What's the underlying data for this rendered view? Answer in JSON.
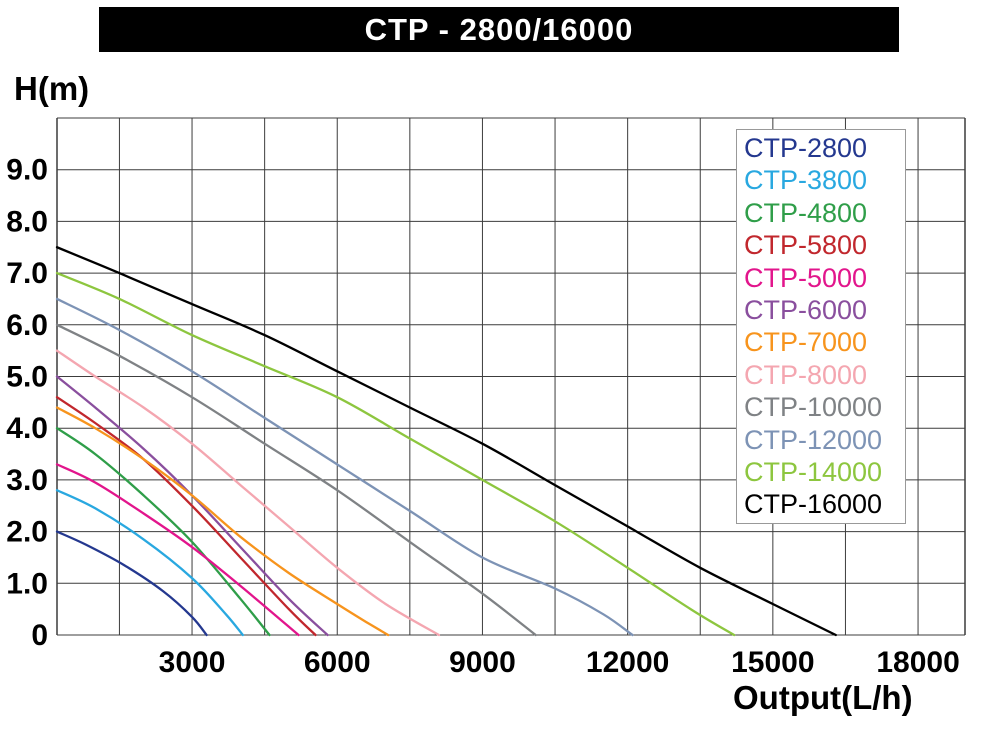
{
  "title_bar": {
    "title": "CTP - 2800/16000"
  },
  "axes": {
    "y_label": "H(m)",
    "x_label": "Output(L/h)"
  },
  "chart_data": {
    "type": "line",
    "title": "CTP - 2800/16000",
    "xlabel": "Output(L/h)",
    "ylabel": "H(m)",
    "xlim": [
      210,
      18970
    ],
    "ylim": [
      0,
      10
    ],
    "grid": {
      "x_step": 1500,
      "y_step": 1,
      "first_x_line": 1500,
      "last_x_line": 18000
    },
    "legend_position": "top-right",
    "x_ticks": [
      {
        "value": 3000,
        "label": "3000"
      },
      {
        "value": 6000,
        "label": "6000"
      },
      {
        "value": 9000,
        "label": "9000"
      },
      {
        "value": 12000,
        "label": "12000"
      },
      {
        "value": 15000,
        "label": "15000"
      },
      {
        "value": 18000,
        "label": "18000"
      }
    ],
    "y_ticks": [
      {
        "value": 0,
        "label": "0"
      },
      {
        "value": 1,
        "label": "1.0"
      },
      {
        "value": 2,
        "label": "2.0"
      },
      {
        "value": 3,
        "label": "3.0"
      },
      {
        "value": 4,
        "label": "4.0"
      },
      {
        "value": 5,
        "label": "5.0"
      },
      {
        "value": 6,
        "label": "6.0"
      },
      {
        "value": 7,
        "label": "7.0"
      },
      {
        "value": 8,
        "label": "8.0"
      },
      {
        "value": 9,
        "label": "9.0"
      }
    ],
    "series": [
      {
        "name": "CTP-2800",
        "color": "#24388f",
        "points": [
          [
            210,
            2.0
          ],
          [
            800,
            1.75
          ],
          [
            1600,
            1.35
          ],
          [
            2400,
            0.85
          ],
          [
            3000,
            0.35
          ],
          [
            3300,
            0
          ]
        ]
      },
      {
        "name": "CTP-3800",
        "color": "#29a8e0",
        "points": [
          [
            210,
            2.8
          ],
          [
            1000,
            2.45
          ],
          [
            2000,
            1.85
          ],
          [
            3000,
            1.1
          ],
          [
            3700,
            0.4
          ],
          [
            4050,
            0
          ]
        ]
      },
      {
        "name": "CTP-4800",
        "color": "#2f9e49",
        "points": [
          [
            210,
            4.0
          ],
          [
            1000,
            3.5
          ],
          [
            2000,
            2.7
          ],
          [
            3000,
            1.8
          ],
          [
            4000,
            0.7
          ],
          [
            4600,
            0
          ]
        ]
      },
      {
        "name": "CTP-5800",
        "color": "#c1272d",
        "points": [
          [
            210,
            4.6
          ],
          [
            1000,
            4.1
          ],
          [
            2000,
            3.4
          ],
          [
            3000,
            2.5
          ],
          [
            4000,
            1.5
          ],
          [
            5000,
            0.5
          ],
          [
            5550,
            0
          ]
        ]
      },
      {
        "name": "CTP-5000",
        "color": "#e2158c",
        "points": [
          [
            210,
            3.3
          ],
          [
            1000,
            2.95
          ],
          [
            2000,
            2.35
          ],
          [
            3000,
            1.7
          ],
          [
            4000,
            0.95
          ],
          [
            5200,
            0
          ]
        ]
      },
      {
        "name": "CTP-6000",
        "color": "#8a4f9e",
        "points": [
          [
            210,
            5.0
          ],
          [
            1000,
            4.4
          ],
          [
            2000,
            3.6
          ],
          [
            3000,
            2.7
          ],
          [
            4000,
            1.7
          ],
          [
            5000,
            0.7
          ],
          [
            5800,
            0
          ]
        ]
      },
      {
        "name": "CTP-7000",
        "color": "#f7941d",
        "points": [
          [
            210,
            4.4
          ],
          [
            1000,
            4.0
          ],
          [
            2000,
            3.4
          ],
          [
            3000,
            2.7
          ],
          [
            4000,
            1.9
          ],
          [
            5000,
            1.2
          ],
          [
            6000,
            0.6
          ],
          [
            6600,
            0.25
          ],
          [
            7050,
            0
          ]
        ]
      },
      {
        "name": "CTP-8000",
        "color": "#f4a6b0",
        "points": [
          [
            210,
            5.5
          ],
          [
            1000,
            5.0
          ],
          [
            2000,
            4.4
          ],
          [
            3000,
            3.7
          ],
          [
            4000,
            2.9
          ],
          [
            5000,
            2.1
          ],
          [
            6000,
            1.3
          ],
          [
            7000,
            0.6
          ],
          [
            8100,
            0
          ]
        ]
      },
      {
        "name": "CTP-10000",
        "color": "#7f8285",
        "points": [
          [
            210,
            6.0
          ],
          [
            1500,
            5.4
          ],
          [
            3000,
            4.6
          ],
          [
            4500,
            3.7
          ],
          [
            6000,
            2.8
          ],
          [
            7500,
            1.8
          ],
          [
            9000,
            0.8
          ],
          [
            10100,
            0
          ]
        ]
      },
      {
        "name": "CTP-12000",
        "color": "#7d93b5",
        "points": [
          [
            210,
            6.5
          ],
          [
            1500,
            5.9
          ],
          [
            3000,
            5.1
          ],
          [
            4500,
            4.2
          ],
          [
            6000,
            3.3
          ],
          [
            7500,
            2.4
          ],
          [
            9000,
            1.5
          ],
          [
            10500,
            0.9
          ],
          [
            11500,
            0.4
          ],
          [
            12100,
            0
          ]
        ]
      },
      {
        "name": "CTP-14000",
        "color": "#8dc63f",
        "points": [
          [
            210,
            7.0
          ],
          [
            1500,
            6.5
          ],
          [
            3000,
            5.8
          ],
          [
            4500,
            5.2
          ],
          [
            6000,
            4.6
          ],
          [
            7500,
            3.8
          ],
          [
            9000,
            3.0
          ],
          [
            10500,
            2.2
          ],
          [
            12000,
            1.3
          ],
          [
            13300,
            0.5
          ],
          [
            14200,
            0
          ]
        ]
      },
      {
        "name": "CTP-16000",
        "color": "#000000",
        "points": [
          [
            210,
            7.5
          ],
          [
            1500,
            7.0
          ],
          [
            3000,
            6.4
          ],
          [
            4500,
            5.8
          ],
          [
            6000,
            5.1
          ],
          [
            7500,
            4.4
          ],
          [
            9000,
            3.7
          ],
          [
            10500,
            2.9
          ],
          [
            12000,
            2.1
          ],
          [
            13500,
            1.3
          ],
          [
            15000,
            0.6
          ],
          [
            16300,
            0
          ]
        ]
      }
    ]
  }
}
